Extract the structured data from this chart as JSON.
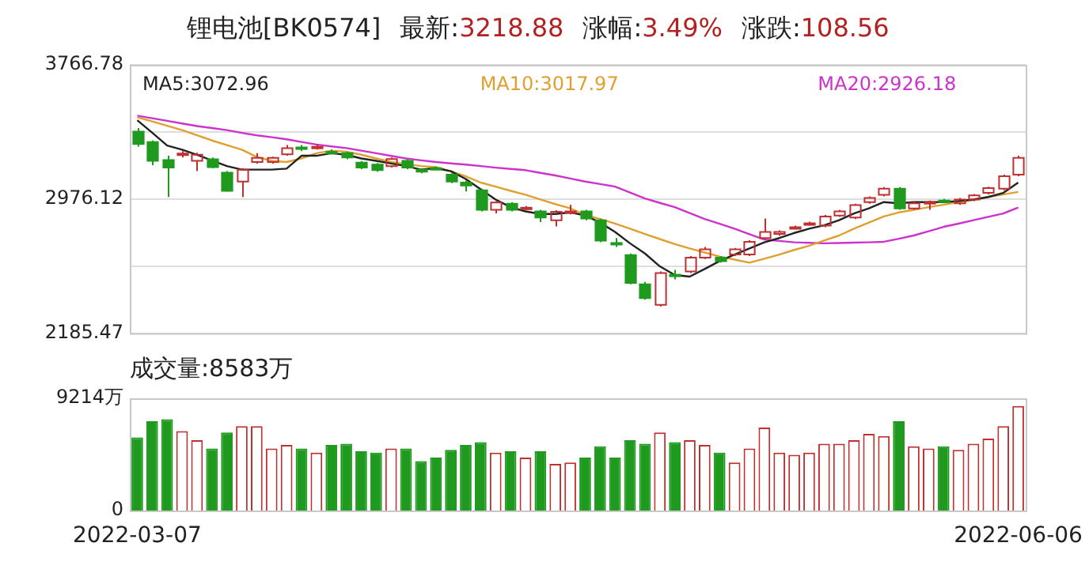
{
  "chart_data": [
    {
      "type": "candlestick",
      "title": "锂电池[BK0574]",
      "annotations": [
        "最新:3218.88",
        "涨幅:3.49%",
        "涨跌:108.56"
      ],
      "categories": [
        "2022-03-07",
        null,
        null,
        null,
        null,
        null,
        null,
        null,
        null,
        null,
        null,
        null,
        null,
        null,
        null,
        null,
        null,
        null,
        null,
        null,
        null,
        null,
        null,
        null,
        null,
        null,
        null,
        null,
        null,
        null,
        null,
        null,
        null,
        null,
        null,
        null,
        null,
        null,
        null,
        null,
        null,
        null,
        null,
        null,
        null,
        null,
        null,
        null,
        null,
        null,
        null,
        null,
        null,
        null,
        null,
        null,
        null,
        null,
        null,
        "2022-06-06"
      ],
      "ohlc": [
        [
          3373,
          3394,
          3285,
          3300
        ],
        [
          3312,
          3321,
          3176,
          3201
        ],
        [
          3206,
          3231,
          2988,
          3161
        ],
        [
          3240,
          3258,
          3221,
          3244
        ],
        [
          3201,
          3249,
          3140,
          3237
        ],
        [
          3210,
          3221,
          3158,
          3164
        ],
        [
          3131,
          3140,
          3021,
          3024
        ],
        [
          3079,
          3158,
          2988,
          3149
        ],
        [
          3194,
          3246,
          3185,
          3219
        ],
        [
          3194,
          3226,
          3185,
          3219
        ],
        [
          3240,
          3294,
          3231,
          3276
        ],
        [
          3280,
          3294,
          3258,
          3276
        ],
        [
          3280,
          3299,
          3267,
          3284
        ],
        [
          3254,
          3267,
          3240,
          3250
        ],
        [
          3246,
          3255,
          3210,
          3221
        ],
        [
          3191,
          3200,
          3152,
          3161
        ],
        [
          3179,
          3188,
          3137,
          3146
        ],
        [
          3170,
          3221,
          3161,
          3212
        ],
        [
          3201,
          3210,
          3152,
          3161
        ],
        [
          3149,
          3158,
          3128,
          3137
        ],
        [
          3158,
          3167,
          3146,
          3155
        ],
        [
          3119,
          3128,
          3070,
          3079
        ],
        [
          3073,
          3085,
          3021,
          3055
        ],
        [
          3028,
          3037,
          2903,
          2912
        ],
        [
          2912,
          2964,
          2891,
          2955
        ],
        [
          2949,
          2958,
          2903,
          2912
        ],
        [
          2921,
          2935,
          2912,
          2925
        ],
        [
          2903,
          2912,
          2840,
          2867
        ],
        [
          2851,
          2910,
          2815,
          2901
        ],
        [
          2894,
          2942,
          2885,
          2903
        ],
        [
          2903,
          2912,
          2851,
          2861
        ],
        [
          2851,
          2860,
          2722,
          2731
        ],
        [
          2717,
          2746,
          2694,
          2715
        ],
        [
          2646,
          2655,
          2473,
          2482
        ],
        [
          2473,
          2488,
          2383,
          2392
        ],
        [
          2352,
          2549,
          2343,
          2540
        ],
        [
          2530,
          2558,
          2503,
          2528
        ],
        [
          2549,
          2640,
          2540,
          2631
        ],
        [
          2631,
          2694,
          2622,
          2679
        ],
        [
          2631,
          2640,
          2601,
          2610
        ],
        [
          2649,
          2688,
          2640,
          2679
        ],
        [
          2649,
          2733,
          2640,
          2724
        ],
        [
          2746,
          2861,
          2737,
          2782
        ],
        [
          2770,
          2791,
          2760,
          2782
        ],
        [
          2806,
          2819,
          2797,
          2810
        ],
        [
          2830,
          2842,
          2820,
          2833
        ],
        [
          2819,
          2882,
          2810,
          2873
        ],
        [
          2879,
          2912,
          2870,
          2903
        ],
        [
          2867,
          2949,
          2858,
          2940
        ],
        [
          2958,
          2991,
          2949,
          2982
        ],
        [
          3001,
          3046,
          2992,
          3037
        ],
        [
          3037,
          3046,
          2912,
          2921
        ],
        [
          2921,
          2960,
          2912,
          2951
        ],
        [
          2955,
          2967,
          2912,
          2958
        ],
        [
          2967,
          2976,
          2955,
          2964
        ],
        [
          2951,
          2982,
          2942,
          2973
        ],
        [
          2973,
          3006,
          2964,
          2997
        ],
        [
          3012,
          3049,
          3003,
          3040
        ],
        [
          3037,
          3119,
          3028,
          3110
        ],
        [
          3119,
          3231,
          3110,
          3218.88
        ]
      ],
      "colors": [
        "#1f9a1f",
        "#1f9a1f",
        "#1f9a1f",
        "#c03030",
        "#c03030",
        "#1f9a1f",
        "#1f9a1f",
        "#c03030",
        "#c03030",
        "#c03030",
        "#c03030",
        "#1f9a1f",
        "#c03030",
        "#1f9a1f",
        "#1f9a1f",
        "#1f9a1f",
        "#1f9a1f",
        "#c03030",
        "#1f9a1f",
        "#1f9a1f",
        "#1f9a1f",
        "#1f9a1f",
        "#1f9a1f",
        "#1f9a1f",
        "#c03030",
        "#1f9a1f",
        "#c03030",
        "#1f9a1f",
        "#c03030",
        "#c03030",
        "#1f9a1f",
        "#1f9a1f",
        "#1f9a1f",
        "#1f9a1f",
        "#1f9a1f",
        "#c03030",
        "#1f9a1f",
        "#c03030",
        "#c03030",
        "#1f9a1f",
        "#c03030",
        "#c03030",
        "#c03030",
        "#c03030",
        "#c03030",
        "#c03030",
        "#c03030",
        "#c03030",
        "#c03030",
        "#c03030",
        "#c03030",
        "#1f9a1f",
        "#c03030",
        "#c03030",
        "#1f9a1f",
        "#c03030",
        "#c03030",
        "#c03030",
        "#c03030",
        "#c03030"
      ],
      "series": [
        {
          "name": "MA5:3072.96",
          "type": "line",
          "color": "#222222",
          "values": [
            3440,
            3367,
            3291,
            3267,
            3237,
            3203,
            3170,
            3149,
            3149,
            3149,
            3155,
            3231,
            3231,
            3246,
            3237,
            3215,
            3201,
            3185,
            3170,
            3149,
            3158,
            3140,
            3094,
            3033,
            2973,
            2928,
            2903,
            2888,
            2888,
            2897,
            2879,
            2837,
            2782,
            2715,
            2655,
            2579,
            2528,
            2519,
            2564,
            2610,
            2649,
            2685,
            2721,
            2746,
            2776,
            2801,
            2821,
            2851,
            2891,
            2921,
            2958,
            2951,
            2958,
            2958,
            2958,
            2964,
            2973,
            2988,
            3012,
            3072.96
          ]
        },
        {
          "name": "MA10:3017.97",
          "type": "line",
          "color": "#e0a030",
          "values": [
            3458,
            3433,
            3408,
            3382,
            3352,
            3321,
            3294,
            3267,
            3224,
            3201,
            3194,
            3215,
            3246,
            3261,
            3255,
            3237,
            3215,
            3194,
            3182,
            3170,
            3164,
            3140,
            3110,
            3073,
            3049,
            3024,
            3001,
            2973,
            2946,
            2921,
            2882,
            2858,
            2831,
            2801,
            2770,
            2740,
            2710,
            2685,
            2661,
            2637,
            2619,
            2601,
            2624,
            2649,
            2676,
            2701,
            2731,
            2761,
            2801,
            2837,
            2873,
            2897,
            2912,
            2928,
            2942,
            2958,
            2970,
            2988,
            3003,
            3017.97
          ]
        },
        {
          "name": "MA20:2926.18",
          "type": "line",
          "color": "#cc33cc",
          "values": [
            3467,
            3452,
            3437,
            3421,
            3406,
            3394,
            3382,
            3366,
            3351,
            3340,
            3328,
            3312,
            3297,
            3286,
            3276,
            3261,
            3246,
            3230,
            3215,
            3204,
            3194,
            3186,
            3179,
            3170,
            3161,
            3153,
            3146,
            3130,
            3115,
            3097,
            3079,
            3064,
            3049,
            3014,
            2979,
            2953,
            2928,
            2893,
            2858,
            2830,
            2801,
            2769,
            2737,
            2729,
            2721,
            2718,
            2715,
            2717,
            2719,
            2721,
            2724,
            2742,
            2761,
            2786,
            2812,
            2831,
            2851,
            2871,
            2891,
            2926.18
          ]
        }
      ],
      "ylim": [
        2185.47,
        3766.78
      ],
      "yticks": [
        2185.47,
        {
          "value": 2580.8,
          "label": null
        },
        2976.12,
        {
          "value": 3371.45,
          "label": null
        },
        3766.78
      ],
      "grid": "y",
      "tick_labels": "y",
      "marker": "none"
    },
    {
      "type": "bar",
      "title": "成交量:8583万",
      "categories": [
        "2022-03-07",
        null,
        null,
        null,
        null,
        null,
        null,
        null,
        null,
        null,
        null,
        null,
        null,
        null,
        null,
        null,
        null,
        null,
        null,
        null,
        null,
        null,
        null,
        null,
        null,
        null,
        null,
        null,
        null,
        null,
        null,
        null,
        null,
        null,
        null,
        null,
        null,
        null,
        null,
        null,
        null,
        null,
        null,
        null,
        null,
        null,
        null,
        null,
        null,
        null,
        null,
        null,
        null,
        null,
        null,
        null,
        null,
        null,
        null,
        "2022-06-06"
      ],
      "values": [
        6010,
        7330,
        7500,
        6520,
        5780,
        5090,
        6410,
        6930,
        6930,
        5090,
        5380,
        5090,
        4750,
        5380,
        5490,
        4870,
        4750,
        5090,
        5090,
        4060,
        4350,
        4980,
        5380,
        5610,
        4750,
        4870,
        4350,
        4870,
        3830,
        3950,
        4350,
        5270,
        4350,
        5780,
        5490,
        6410,
        5610,
        5780,
        5380,
        4750,
        3950,
        5090,
        6810,
        4750,
        4580,
        4750,
        5490,
        5490,
        5780,
        6300,
        6120,
        7330,
        5270,
        5090,
        5270,
        4980,
        5490,
        5900,
        6930,
        8583
      ],
      "colors": [
        "#1f9a1f",
        "#1f9a1f",
        "#1f9a1f",
        "#c03030",
        "#c03030",
        "#1f9a1f",
        "#1f9a1f",
        "#c03030",
        "#c03030",
        "#c03030",
        "#c03030",
        "#1f9a1f",
        "#c03030",
        "#1f9a1f",
        "#1f9a1f",
        "#1f9a1f",
        "#1f9a1f",
        "#c03030",
        "#1f9a1f",
        "#1f9a1f",
        "#1f9a1f",
        "#1f9a1f",
        "#1f9a1f",
        "#1f9a1f",
        "#c03030",
        "#1f9a1f",
        "#c03030",
        "#1f9a1f",
        "#c03030",
        "#c03030",
        "#1f9a1f",
        "#1f9a1f",
        "#1f9a1f",
        "#1f9a1f",
        "#1f9a1f",
        "#c03030",
        "#1f9a1f",
        "#c03030",
        "#c03030",
        "#1f9a1f",
        "#c03030",
        "#c03030",
        "#c03030",
        "#c03030",
        "#c03030",
        "#c03030",
        "#c03030",
        "#c03030",
        "#c03030",
        "#c03030",
        "#c03030",
        "#1f9a1f",
        "#c03030",
        "#c03030",
        "#1f9a1f",
        "#c03030",
        "#c03030",
        "#c03030",
        "#c03030",
        "#c03030"
      ],
      "ylim": [
        0,
        9214
      ],
      "yticks": [
        0,
        {
          "value": 9214,
          "label": "9214万"
        }
      ]
    }
  ]
}
